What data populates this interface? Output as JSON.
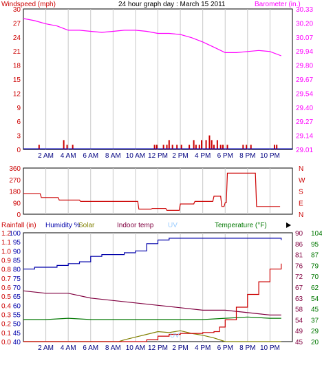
{
  "title": "24 hour graph day : March 15 2011",
  "x_tick_labels": [
    "2 AM",
    "4 AM",
    "6 AM",
    "8 AM",
    "10 AM",
    "12 PM",
    "2 PM",
    "4 PM",
    "6 PM",
    "8 PM",
    "10 PM"
  ],
  "colors": {
    "frame": "#000000",
    "grid": "#c8c8c8",
    "wind": "#cc0000",
    "barometer": "#ff00ff",
    "rain": "#cc0000",
    "humidity": "#0000aa",
    "solar": "#808000",
    "indoor": "#800040",
    "uv": "#99ccff",
    "temperature": "#007700",
    "direction": "#cc0000"
  },
  "chart_data": [
    {
      "type": "bar",
      "panel": "wind_barometer",
      "left_axis_label": "Windspeed (mph)",
      "right_axis_label": "Barometer (in.)",
      "left_ticks": [
        "30",
        "27",
        "24",
        "21",
        "18",
        "15",
        "12",
        "9",
        "6",
        "3",
        "0"
      ],
      "right_ticks": [
        "30.33",
        "30.20",
        "30.07",
        "29.94",
        "29.80",
        "29.67",
        "29.54",
        "29.40",
        "29.27",
        "29.14",
        "29.01"
      ],
      "ylim_left": [
        0,
        30
      ],
      "ylim_right": [
        29.01,
        30.33
      ],
      "wind_bars": [
        {
          "hour": 1.4,
          "value": 1
        },
        {
          "hour": 3.6,
          "value": 2
        },
        {
          "hour": 3.9,
          "value": 1
        },
        {
          "hour": 4.4,
          "value": 1
        },
        {
          "hour": 11.7,
          "value": 1
        },
        {
          "hour": 11.9,
          "value": 1
        },
        {
          "hour": 12.5,
          "value": 1
        },
        {
          "hour": 12.8,
          "value": 1
        },
        {
          "hour": 13.0,
          "value": 2
        },
        {
          "hour": 13.3,
          "value": 1
        },
        {
          "hour": 13.7,
          "value": 1
        },
        {
          "hour": 14.1,
          "value": 1
        },
        {
          "hour": 14.8,
          "value": 1
        },
        {
          "hour": 15.2,
          "value": 2
        },
        {
          "hour": 15.4,
          "value": 1
        },
        {
          "hour": 15.7,
          "value": 1
        },
        {
          "hour": 15.9,
          "value": 2
        },
        {
          "hour": 16.3,
          "value": 2
        },
        {
          "hour": 16.6,
          "value": 3
        },
        {
          "hour": 16.8,
          "value": 2
        },
        {
          "hour": 17.0,
          "value": 1
        },
        {
          "hour": 17.3,
          "value": 2
        },
        {
          "hour": 17.6,
          "value": 1
        },
        {
          "hour": 17.8,
          "value": 1
        },
        {
          "hour": 18.2,
          "value": 1
        },
        {
          "hour": 19.6,
          "value": 1
        },
        {
          "hour": 19.9,
          "value": 1
        },
        {
          "hour": 20.3,
          "value": 1
        },
        {
          "hour": 22.4,
          "value": 1
        },
        {
          "hour": 22.6,
          "value": 1
        }
      ],
      "barometer": {
        "hours": [
          0,
          1,
          2,
          3,
          4,
          5,
          6,
          7,
          8,
          9,
          10,
          11,
          12,
          13,
          14,
          15,
          16,
          17,
          18,
          19,
          20,
          21,
          22,
          23
        ],
        "values": [
          30.24,
          30.22,
          30.19,
          30.17,
          30.13,
          30.13,
          30.12,
          30.11,
          30.12,
          30.13,
          30.13,
          30.12,
          30.1,
          30.1,
          30.09,
          30.06,
          30.02,
          29.97,
          29.92,
          29.92,
          29.93,
          29.94,
          29.93,
          29.89
        ]
      }
    },
    {
      "type": "line",
      "panel": "wind_direction",
      "left_ticks": [
        "360",
        "270",
        "180",
        "90",
        "0"
      ],
      "right_ticks": [
        "N",
        "W",
        "S",
        "E",
        "N"
      ],
      "ylim": [
        0,
        360
      ],
      "hours": [
        0,
        1.5,
        1.6,
        3.1,
        3.2,
        5.0,
        5.1,
        10.2,
        10.3,
        11.4,
        11.5,
        12.7,
        12.8,
        13.9,
        14.0,
        15.2,
        15.3,
        16.9,
        17.0,
        17.6,
        17.7,
        17.9,
        18.0,
        18.1,
        18.2,
        20.7,
        20.8,
        22.9
      ],
      "values": [
        160,
        160,
        130,
        130,
        110,
        110,
        100,
        100,
        40,
        40,
        45,
        45,
        30,
        30,
        80,
        80,
        100,
        100,
        140,
        140,
        60,
        60,
        90,
        90,
        320,
        320,
        60,
        60
      ]
    },
    {
      "type": "line",
      "panel": "rain_humidity_temp",
      "legend": [
        {
          "key": "rain",
          "label": "Rainfall (in)"
        },
        {
          "key": "humidity",
          "label": "Humidity %"
        },
        {
          "key": "solar",
          "label": "Solar"
        },
        {
          "key": "indoor",
          "label": "Indoor temp"
        },
        {
          "key": "uv",
          "label": "UV"
        },
        {
          "key": "temperature",
          "label": "Temperature (°F)"
        }
      ],
      "rain_ticks": [
        "1.2",
        "1.1",
        "1.0",
        "0.9",
        "0.8",
        "0.7",
        "0.6",
        "0.5",
        "0.4",
        "0.3",
        "0.2",
        "0.1",
        "0.0"
      ],
      "humidity_ticks": [
        "100",
        "95",
        "90",
        "85",
        "80",
        "75",
        "70",
        "65",
        "60",
        "55",
        "50",
        "45",
        "40"
      ],
      "indoor_ticks": [
        "90",
        "86",
        "81",
        "76",
        "72",
        "67",
        "63",
        "58",
        "54",
        "49",
        "45"
      ],
      "temperature_ticks": [
        "104",
        "95",
        "87",
        "79",
        "70",
        "62",
        "54",
        "45",
        "37",
        "29",
        "20"
      ],
      "uv_label": "UV",
      "ylim_humidity": [
        40,
        100
      ],
      "ylim_temperature": [
        20,
        104
      ],
      "ylim_indoor": [
        45,
        90
      ],
      "ylim_rain": [
        0,
        1.2
      ],
      "humidity": {
        "hours": [
          0,
          1,
          2,
          3,
          4,
          5,
          6,
          7,
          8,
          9,
          10,
          11,
          12,
          13,
          14,
          15,
          16,
          17,
          18,
          19,
          20,
          21,
          22,
          23
        ],
        "values": [
          80,
          81,
          81,
          82,
          83,
          84,
          87,
          88,
          88,
          89,
          90,
          94,
          96,
          97,
          97,
          97,
          97,
          97,
          97,
          97,
          97,
          97,
          97,
          96
        ]
      },
      "indoor_temp": {
        "hours": [
          0,
          2,
          4,
          6,
          8,
          10,
          12,
          14,
          16,
          18,
          20,
          22,
          23
        ],
        "values": [
          66,
          65,
          65,
          63,
          62,
          61,
          60,
          59,
          58,
          58,
          57,
          56,
          56
        ]
      },
      "temperature": {
        "hours": [
          0,
          2,
          4,
          6,
          8,
          10,
          12,
          14,
          16,
          18,
          20,
          22,
          23
        ],
        "values": [
          37,
          37,
          38,
          37,
          37,
          37,
          37,
          37,
          37,
          38,
          39,
          38,
          38
        ]
      },
      "rainfall": {
        "hours": [
          0,
          10,
          11,
          12,
          13,
          14,
          15,
          16,
          17,
          17.5,
          18,
          19,
          20,
          21,
          22,
          23
        ],
        "values": [
          0,
          0,
          0.02,
          0.06,
          0.08,
          0.09,
          0.09,
          0.1,
          0.11,
          0.16,
          0.24,
          0.38,
          0.52,
          0.66,
          0.8,
          0.86
        ]
      },
      "solar": {
        "hours": [
          0,
          8.5,
          9,
          10,
          11,
          12,
          13,
          14,
          15,
          16,
          17,
          18,
          23
        ],
        "values": [
          0,
          0,
          0.02,
          0.05,
          0.08,
          0.11,
          0.1,
          0.12,
          0.09,
          0.07,
          0.04,
          0,
          0
        ]
      }
    }
  ]
}
